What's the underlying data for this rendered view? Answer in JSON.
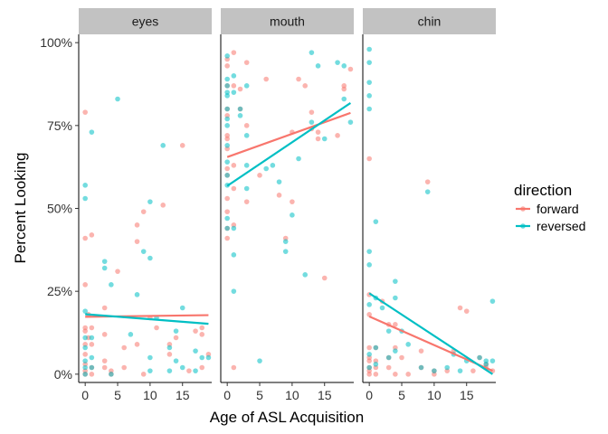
{
  "chart_data": {
    "type": "scatter",
    "xlabel": "Age of ASL Acquisition",
    "ylabel": "Percent Looking",
    "xlim": [
      -1,
      19.5
    ],
    "ylim": [
      -0.025,
      1.025
    ],
    "x_ticks": [
      0,
      5,
      10,
      15
    ],
    "x_tick_labels": [
      "0",
      "5",
      "10",
      "15"
    ],
    "y_ticks": [
      0,
      0.25,
      0.5,
      0.75,
      1.0
    ],
    "y_tick_labels": [
      "0%",
      "25%",
      "50%",
      "75%",
      "100%"
    ],
    "grid": false,
    "legend": {
      "title": "direction",
      "placement": "right",
      "entries": [
        {
          "name": "forward",
          "color": "#F8766D"
        },
        {
          "name": "reversed",
          "color": "#00BFC4"
        }
      ]
    },
    "facets": [
      {
        "name": "eyes",
        "series": [
          {
            "name": "forward",
            "points": [
              [
                0,
                0.79
              ],
              [
                0,
                0.27
              ],
              [
                0,
                0.41
              ],
              [
                0,
                0.14
              ],
              [
                0,
                0.13
              ],
              [
                0,
                0.09
              ],
              [
                0,
                0.06
              ],
              [
                0,
                0.03
              ],
              [
                0,
                0.01
              ],
              [
                0,
                0.0
              ],
              [
                0.5,
                0.18
              ],
              [
                0.5,
                0.11
              ],
              [
                1,
                0.42
              ],
              [
                1,
                0.14
              ],
              [
                1,
                0.09
              ],
              [
                1,
                0.02
              ],
              [
                1,
                0.0
              ],
              [
                3,
                0.2
              ],
              [
                3,
                0.12
              ],
              [
                3,
                0.04
              ],
              [
                3,
                0.02
              ],
              [
                4,
                0.01
              ],
              [
                4,
                0.0
              ],
              [
                5,
                0.31
              ],
              [
                6,
                0.08
              ],
              [
                6,
                0.02
              ],
              [
                8,
                0.45
              ],
              [
                8,
                0.4
              ],
              [
                8,
                0.09
              ],
              [
                9,
                0.49
              ],
              [
                9,
                0.0
              ],
              [
                10,
                0.17
              ],
              [
                11,
                0.14
              ],
              [
                12,
                0.51
              ],
              [
                13,
                0.09
              ],
              [
                13,
                0.06
              ],
              [
                14,
                0.11
              ],
              [
                15,
                0.69
              ],
              [
                16,
                0.01
              ],
              [
                17,
                0.13
              ],
              [
                18,
                0.14
              ],
              [
                18,
                0.12
              ],
              [
                18,
                0.02
              ],
              [
                19,
                0.06
              ]
            ],
            "trend": [
              [
                0,
                0.173
              ],
              [
                19,
                0.178
              ]
            ]
          },
          {
            "name": "reversed",
            "points": [
              [
                0,
                0.57
              ],
              [
                0,
                0.53
              ],
              [
                0,
                0.19
              ],
              [
                0,
                0.11
              ],
              [
                0,
                0.08
              ],
              [
                0,
                0.04
              ],
              [
                0,
                0.02
              ],
              [
                0,
                0.0
              ],
              [
                1,
                0.73
              ],
              [
                1,
                0.11
              ],
              [
                1,
                0.05
              ],
              [
                1,
                0.02
              ],
              [
                3,
                0.34
              ],
              [
                3,
                0.32
              ],
              [
                4,
                0.27
              ],
              [
                4,
                0.0
              ],
              [
                5,
                0.83
              ],
              [
                7,
                0.12
              ],
              [
                8,
                0.24
              ],
              [
                9,
                0.37
              ],
              [
                10,
                0.52
              ],
              [
                10,
                0.35
              ],
              [
                10,
                0.05
              ],
              [
                10,
                0.01
              ],
              [
                11,
                0.17
              ],
              [
                12,
                0.69
              ],
              [
                13,
                0.08
              ],
              [
                13,
                0.01
              ],
              [
                14,
                0.13
              ],
              [
                14,
                0.04
              ],
              [
                15,
                0.2
              ],
              [
                15,
                0.02
              ],
              [
                17,
                0.07
              ],
              [
                17,
                0.01
              ],
              [
                18,
                0.05
              ],
              [
                19,
                0.05
              ]
            ],
            "trend": [
              [
                0,
                0.181
              ],
              [
                19,
                0.152
              ]
            ]
          }
        ]
      },
      {
        "name": "mouth",
        "series": [
          {
            "name": "forward",
            "points": [
              [
                0,
                0.95
              ],
              [
                0,
                0.93
              ],
              [
                0,
                0.87
              ],
              [
                0,
                0.8
              ],
              [
                0,
                0.78
              ],
              [
                0,
                0.72
              ],
              [
                0,
                0.71
              ],
              [
                0,
                0.68
              ],
              [
                0,
                0.62
              ],
              [
                0,
                0.6
              ],
              [
                0,
                0.53
              ],
              [
                0,
                0.49
              ],
              [
                0,
                0.44
              ],
              [
                0,
                0.41
              ],
              [
                1,
                0.97
              ],
              [
                1,
                0.87
              ],
              [
                1,
                0.63
              ],
              [
                1,
                0.56
              ],
              [
                1,
                0.45
              ],
              [
                1,
                0.02
              ],
              [
                2,
                0.86
              ],
              [
                2,
                0.8
              ],
              [
                3,
                0.94
              ],
              [
                3,
                0.75
              ],
              [
                3,
                0.52
              ],
              [
                5,
                0.6
              ],
              [
                6,
                0.89
              ],
              [
                8,
                0.54
              ],
              [
                9,
                0.41
              ],
              [
                10,
                0.52
              ],
              [
                10,
                0.73
              ],
              [
                11,
                0.89
              ],
              [
                12,
                0.87
              ],
              [
                13,
                0.74
              ],
              [
                13,
                0.79
              ],
              [
                14,
                0.73
              ],
              [
                14,
                0.71
              ],
              [
                15,
                0.29
              ],
              [
                17,
                0.72
              ],
              [
                18,
                0.87
              ],
              [
                18,
                0.86
              ],
              [
                19,
                0.92
              ]
            ],
            "trend": [
              [
                0,
                0.655
              ],
              [
                19,
                0.788
              ]
            ]
          },
          {
            "name": "reversed",
            "points": [
              [
                0,
                0.96
              ],
              [
                0,
                0.89
              ],
              [
                0,
                0.87
              ],
              [
                0,
                0.85
              ],
              [
                0,
                0.84
              ],
              [
                0,
                0.8
              ],
              [
                0,
                0.77
              ],
              [
                0,
                0.75
              ],
              [
                0,
                0.69
              ],
              [
                0,
                0.64
              ],
              [
                0,
                0.6
              ],
              [
                0,
                0.57
              ],
              [
                0,
                0.47
              ],
              [
                0,
                0.44
              ],
              [
                1,
                0.9
              ],
              [
                1,
                0.85
              ],
              [
                1,
                0.44
              ],
              [
                1,
                0.36
              ],
              [
                1,
                0.25
              ],
              [
                2,
                0.8
              ],
              [
                2,
                0.78
              ],
              [
                3,
                0.87
              ],
              [
                3,
                0.72
              ],
              [
                3,
                0.56
              ],
              [
                3,
                0.63
              ],
              [
                5,
                0.04
              ],
              [
                6,
                0.62
              ],
              [
                7,
                0.63
              ],
              [
                8,
                0.58
              ],
              [
                9,
                0.4
              ],
              [
                9,
                0.37
              ],
              [
                10,
                0.48
              ],
              [
                11,
                0.65
              ],
              [
                12,
                0.3
              ],
              [
                13,
                0.97
              ],
              [
                13,
                0.76
              ],
              [
                14,
                0.93
              ],
              [
                15,
                0.71
              ],
              [
                17,
                0.94
              ],
              [
                18,
                0.93
              ],
              [
                18,
                0.83
              ],
              [
                19,
                0.76
              ]
            ],
            "trend": [
              [
                0,
                0.568
              ],
              [
                19,
                0.818
              ]
            ]
          }
        ]
      },
      {
        "name": "chin",
        "series": [
          {
            "name": "forward",
            "points": [
              [
                0,
                0.65
              ],
              [
                0,
                0.24
              ],
              [
                0,
                0.18
              ],
              [
                0,
                0.08
              ],
              [
                0,
                0.05
              ],
              [
                0,
                0.04
              ],
              [
                0,
                0.02
              ],
              [
                0,
                0.01
              ],
              [
                0,
                0.0
              ],
              [
                1,
                0.08
              ],
              [
                1,
                0.04
              ],
              [
                1,
                0.02
              ],
              [
                1,
                0.0
              ],
              [
                2,
                0.22
              ],
              [
                3,
                0.15
              ],
              [
                3,
                0.05
              ],
              [
                3,
                0.02
              ],
              [
                4,
                0.15
              ],
              [
                4,
                0.08
              ],
              [
                4,
                0.0
              ],
              [
                5,
                0.05
              ],
              [
                6,
                0.0
              ],
              [
                8,
                0.07
              ],
              [
                8,
                0.02
              ],
              [
                9,
                0.58
              ],
              [
                10,
                0.01
              ],
              [
                10,
                0.0
              ],
              [
                12,
                0.01
              ],
              [
                13,
                0.07
              ],
              [
                14,
                0.2
              ],
              [
                15,
                0.19
              ],
              [
                16,
                0.01
              ],
              [
                17,
                0.05
              ],
              [
                18,
                0.03
              ],
              [
                18,
                0.02
              ],
              [
                19,
                0.01
              ]
            ],
            "trend": [
              [
                0,
                0.174
              ],
              [
                19,
                0.01
              ]
            ]
          },
          {
            "name": "reversed",
            "points": [
              [
                0,
                0.98
              ],
              [
                0,
                0.94
              ],
              [
                0,
                0.88
              ],
              [
                0,
                0.84
              ],
              [
                0,
                0.8
              ],
              [
                0,
                0.37
              ],
              [
                0,
                0.33
              ],
              [
                0,
                0.21
              ],
              [
                0,
                0.06
              ],
              [
                0,
                0.02
              ],
              [
                1,
                0.46
              ],
              [
                1,
                0.23
              ],
              [
                1,
                0.08
              ],
              [
                1,
                0.03
              ],
              [
                2,
                0.2
              ],
              [
                3,
                0.13
              ],
              [
                3,
                0.05
              ],
              [
                4,
                0.28
              ],
              [
                4,
                0.23
              ],
              [
                4,
                0.07
              ],
              [
                5,
                0.13
              ],
              [
                6,
                0.09
              ],
              [
                8,
                0.02
              ],
              [
                9,
                0.55
              ],
              [
                10,
                0.01
              ],
              [
                12,
                0.02
              ],
              [
                13,
                0.06
              ],
              [
                14,
                0.01
              ],
              [
                15,
                0.04
              ],
              [
                17,
                0.05
              ],
              [
                18,
                0.04
              ],
              [
                18,
                0.03
              ],
              [
                19,
                0.22
              ],
              [
                19,
                0.04
              ]
            ],
            "trend": [
              [
                0,
                0.244
              ],
              [
                19,
                0.0
              ]
            ]
          }
        ]
      }
    ]
  }
}
